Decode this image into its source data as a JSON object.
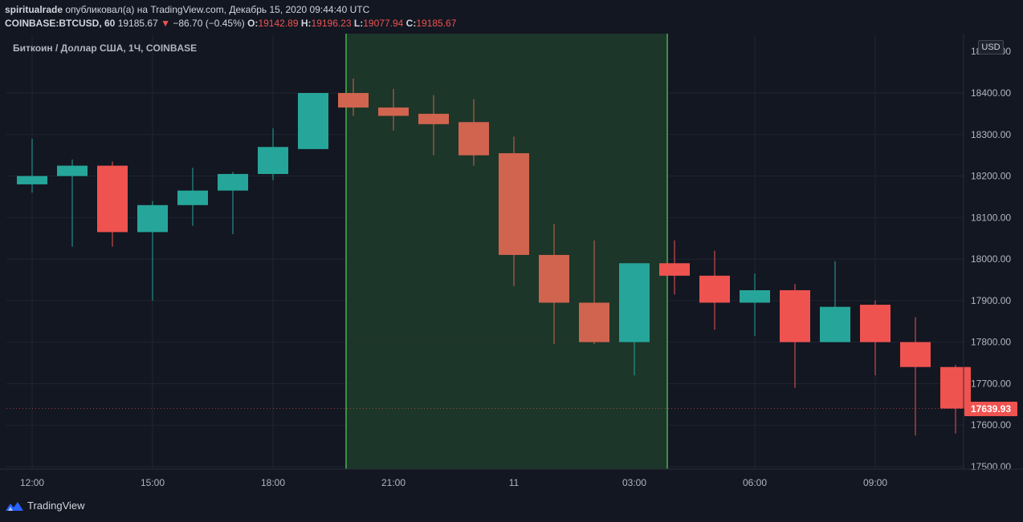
{
  "header": {
    "author": "spiritualrade",
    "published_text": "опубликовал(а) на TradingView.com, Декабрь 15, 2020 09:44:40 UTC",
    "symbol": "COINBASE:BTCUSD, 60",
    "last": "19185.67",
    "change": "−86.70 (−0.45%)",
    "o_label": "O:",
    "o_value": "19142.89",
    "h_label": "H:",
    "h_value": "19196.23",
    "l_label": "L:",
    "l_value": "19077.94",
    "c_label": "C:",
    "c_value": "19185.67"
  },
  "series_label": "Биткоин / Доллар США, 1Ч, COINBASE",
  "currency_badge": "USD",
  "last_price_tag": "17639.93",
  "footer": {
    "brand": "TradingView"
  },
  "colors": {
    "up": "#26a69a",
    "down": "#ef5350",
    "down_highlight": "#d1644f",
    "highlight_fill": "#1e3a2a",
    "highlight_border": "#4caf50",
    "background": "#131722",
    "grid": "#1f2430"
  },
  "chart_data": {
    "type": "candlestick",
    "y_ticks": [
      "18400.00",
      "18300.00",
      "18200.00",
      "18100.00",
      "18000.00",
      "17900.00",
      "17800.00",
      "17700.00",
      "17600.00",
      "17500.00"
    ],
    "x_ticks": [
      "12:00",
      "15:00",
      "18:00",
      "21:00",
      "11",
      "03:00",
      "06:00",
      "09:00"
    ],
    "ylim": [
      17480,
      18520
    ],
    "highlight_range": [
      19.0,
      27.0
    ],
    "candles": [
      {
        "t": 11.0,
        "o": 18180,
        "h": 18290,
        "l": 18160,
        "c": 18200
      },
      {
        "t": 12.0,
        "o": 18200,
        "h": 18240,
        "l": 18030,
        "c": 18225
      },
      {
        "t": 13.0,
        "o": 18225,
        "h": 18235,
        "l": 18030,
        "c": 18065
      },
      {
        "t": 14.0,
        "o": 18065,
        "h": 18140,
        "l": 17900,
        "c": 18130
      },
      {
        "t": 15.0,
        "o": 18130,
        "h": 18220,
        "l": 18080,
        "c": 18165
      },
      {
        "t": 16.0,
        "o": 18165,
        "h": 18210,
        "l": 18060,
        "c": 18205
      },
      {
        "t": 17.0,
        "o": 18205,
        "h": 18315,
        "l": 18190,
        "c": 18270
      },
      {
        "t": 18.0,
        "o": 18265,
        "h": 18400,
        "l": 18265,
        "c": 18400
      },
      {
        "t": 19.0,
        "o": 18400,
        "h": 18435,
        "l": 18345,
        "c": 18365
      },
      {
        "t": 20.0,
        "o": 18365,
        "h": 18410,
        "l": 18310,
        "c": 18345
      },
      {
        "t": 21.0,
        "o": 18350,
        "h": 18395,
        "l": 18250,
        "c": 18325
      },
      {
        "t": 22.0,
        "o": 18330,
        "h": 18385,
        "l": 18225,
        "c": 18250
      },
      {
        "t": 23.0,
        "o": 18255,
        "h": 18295,
        "l": 17935,
        "c": 18010
      },
      {
        "t": 24.0,
        "o": 18010,
        "h": 18085,
        "l": 17795,
        "c": 17895
      },
      {
        "t": 25.0,
        "o": 17895,
        "h": 18045,
        "l": 17795,
        "c": 17800
      },
      {
        "t": 26.0,
        "o": 17800,
        "h": 17990,
        "l": 17720,
        "c": 17990
      },
      {
        "t": 27.0,
        "o": 17990,
        "h": 18045,
        "l": 17915,
        "c": 17960
      },
      {
        "t": 28.0,
        "o": 17960,
        "h": 18020,
        "l": 17830,
        "c": 17895
      },
      {
        "t": 29.0,
        "o": 17895,
        "h": 17965,
        "l": 17815,
        "c": 17925
      },
      {
        "t": 30.0,
        "o": 17925,
        "h": 17940,
        "l": 17690,
        "c": 17800
      },
      {
        "t": 31.0,
        "o": 17800,
        "h": 17995,
        "l": 17800,
        "c": 17885
      },
      {
        "t": 32.0,
        "o": 17890,
        "h": 17900,
        "l": 17720,
        "c": 17800
      },
      {
        "t": 33.0,
        "o": 17800,
        "h": 17860,
        "l": 17575,
        "c": 17740
      },
      {
        "t": 34.0,
        "o": 17740,
        "h": 17745,
        "l": 17580,
        "c": 17640
      }
    ]
  }
}
